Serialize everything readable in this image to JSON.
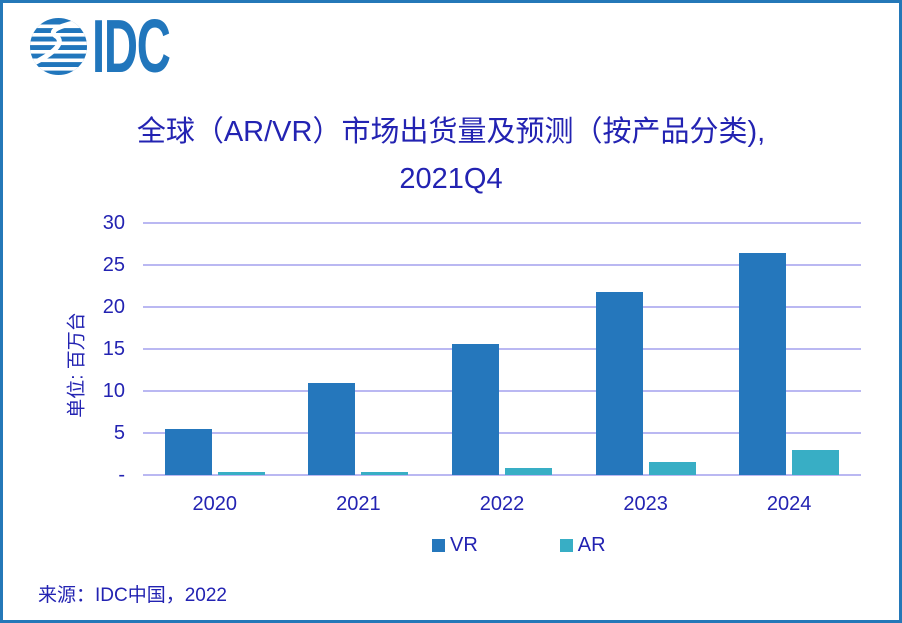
{
  "logo": {
    "brand": "IDC",
    "icon": "globe-stripes-icon",
    "color": "#2176BC"
  },
  "title": {
    "line1": "全球（AR/VR）市场出货量及预测（按产品分类),",
    "line2": "2021Q4",
    "color": "#2323B2"
  },
  "source": {
    "text": "来源：IDC中国，2022"
  },
  "chart_data": {
    "type": "bar",
    "title": "全球（AR/VR）市场出货量及预测（按产品分类), 2021Q4",
    "categories": [
      "2020",
      "2021",
      "2022",
      "2023",
      "2024"
    ],
    "series": [
      {
        "name": "VR",
        "color": "#2577BC",
        "values": [
          5.5,
          10.9,
          15.6,
          21.8,
          26.4
        ]
      },
      {
        "name": "AR",
        "color": "#38AEC5",
        "values": [
          0.3,
          0.3,
          0.8,
          1.5,
          3.0
        ]
      }
    ],
    "xlabel": "",
    "ylabel": "单位: 百万台",
    "ylim": [
      0,
      30
    ],
    "y_ticks": [
      {
        "value": 30,
        "label": "30"
      },
      {
        "value": 25,
        "label": "25"
      },
      {
        "value": 20,
        "label": "20"
      },
      {
        "value": 15,
        "label": "15"
      },
      {
        "value": 10,
        "label": "10"
      },
      {
        "value": 5,
        "label": "5"
      },
      {
        "value": 0,
        "label": "-"
      }
    ],
    "grid": true,
    "legend_position": "bottom",
    "colors": {
      "gridline": "#BAB8F2",
      "axis_text": "#2323B2"
    }
  }
}
